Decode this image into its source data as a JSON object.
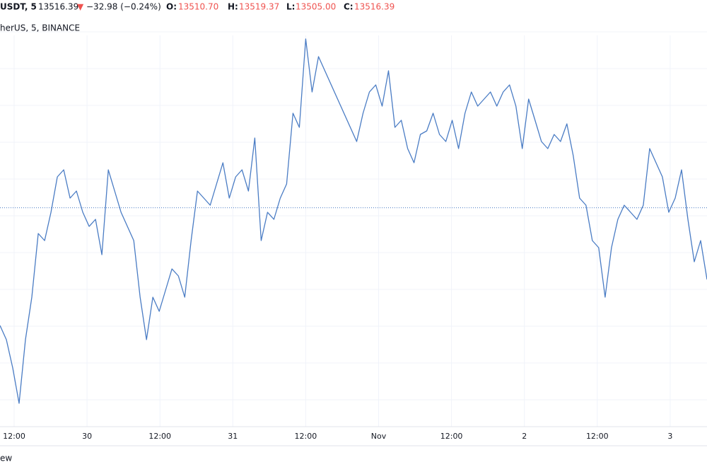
{
  "header": {
    "symbol": "USDT, 5",
    "price": "13516.39",
    "arrow": "▼",
    "change": "−32.98 (−0.24%)",
    "ohlc": [
      {
        "label": "O:",
        "value": "13510.70"
      },
      {
        "label": "H:",
        "value": "13519.37"
      },
      {
        "label": "L:",
        "value": "13505.00"
      },
      {
        "label": "C:",
        "value": "13516.39"
      }
    ],
    "source": "herUS, 5, BINANCE"
  },
  "footer": {
    "text": "ew"
  },
  "chart_data": {
    "type": "line",
    "x_labels": [
      "12:00",
      "30",
      "12:00",
      "31",
      "12:00",
      "Nov",
      "12:00",
      "2",
      "12:00",
      "3"
    ],
    "ylim": [
      13210,
      13810
    ],
    "last_price": 13516.39,
    "grid": true,
    "series": [
      {
        "color": "#4a7cc4",
        "values": [
          13350,
          13330,
          13290,
          13240,
          13330,
          13390,
          13480,
          13470,
          13510,
          13560,
          13570,
          13530,
          13540,
          13510,
          13490,
          13500,
          13450,
          13570,
          13540,
          13510,
          13490,
          13470,
          13390,
          13330,
          13390,
          13370,
          13400,
          13430,
          13420,
          13390,
          13470,
          13540,
          13530,
          13520,
          13550,
          13580,
          13530,
          13560,
          13570,
          13540,
          13615,
          13470,
          13510,
          13500,
          13530,
          13550,
          13650,
          13630,
          13755,
          13680,
          13730,
          13710,
          13690,
          13670,
          13650,
          13630,
          13610,
          13650,
          13680,
          13690,
          13660,
          13710,
          13630,
          13640,
          13600,
          13580,
          13620,
          13625,
          13650,
          13620,
          13610,
          13640,
          13600,
          13650,
          13680,
          13660,
          13670,
          13680,
          13660,
          13680,
          13690,
          13660,
          13600,
          13670,
          13640,
          13610,
          13600,
          13620,
          13610,
          13635,
          13590,
          13530,
          13520,
          13470,
          13460,
          13390,
          13460,
          13500,
          13520,
          13510,
          13500,
          13520,
          13600,
          13580,
          13560,
          13510,
          13530,
          13570,
          13500,
          13440,
          13470,
          13415
        ]
      }
    ]
  }
}
